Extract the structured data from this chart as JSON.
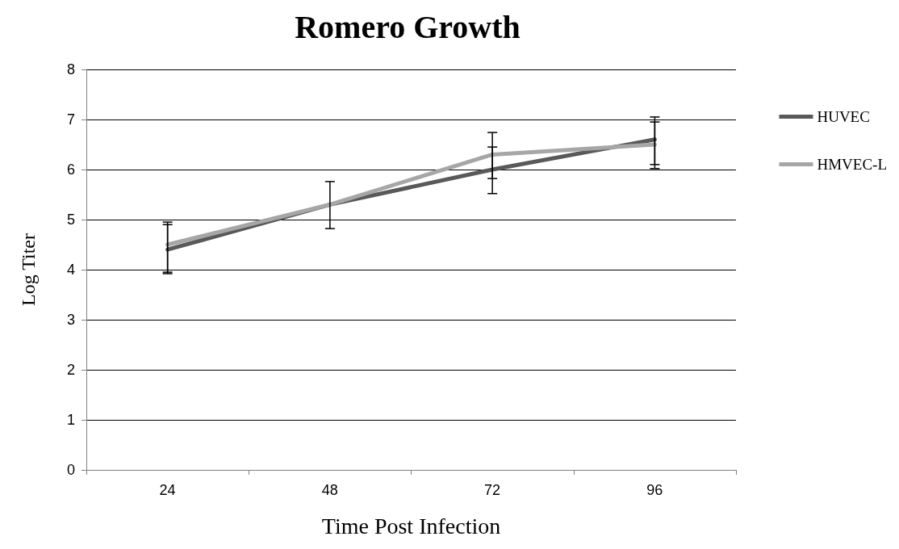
{
  "chart_data": {
    "type": "line",
    "title": "Romero Growth",
    "xlabel": "Time Post Infection",
    "ylabel": "Log Titer",
    "categories": [
      "24",
      "48",
      "72",
      "96"
    ],
    "series": [
      {
        "name": "HUVEC",
        "color": "#595959",
        "values": [
          4.4,
          5.3,
          6.0,
          6.6
        ],
        "errors": [
          [
            3.92,
            4.9
          ],
          [
            4.82,
            5.76
          ],
          [
            5.82,
            6.45
          ],
          [
            6.1,
            7.05
          ]
        ]
      },
      {
        "name": "HMVEC-L",
        "color": "#a6a6a6",
        "values": [
          4.5,
          5.3,
          6.3,
          6.5
        ],
        "errors": [
          [
            3.95,
            4.95
          ],
          null,
          [
            5.52,
            6.74
          ],
          [
            6.02,
            6.95
          ]
        ]
      }
    ],
    "ylim": [
      0,
      8
    ],
    "yticks": [
      0,
      1,
      2,
      3,
      4,
      5,
      6,
      7,
      8
    ],
    "grid": "y",
    "legend": "right",
    "marker": "none",
    "line_style": "solid"
  }
}
